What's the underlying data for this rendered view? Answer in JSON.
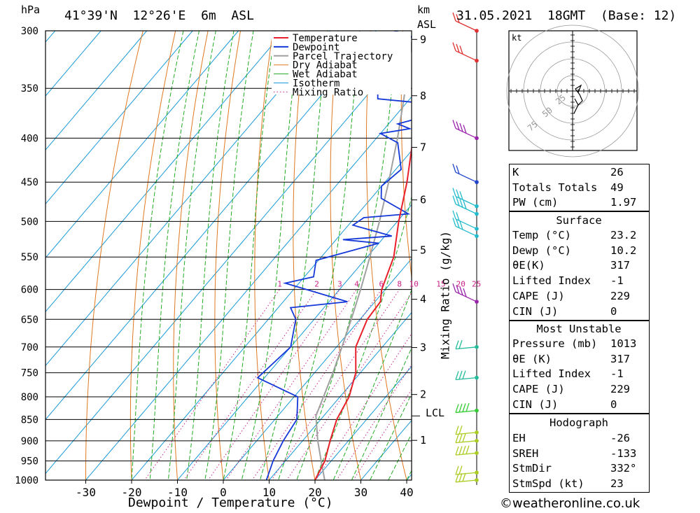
{
  "header": {
    "pressure_unit": "hPa",
    "location": "41°39'N  12°26'E  6m  ASL",
    "height_unit_1": "km",
    "height_unit_2": "ASL",
    "datetime": "31.05.2021  18GMT  (Base: 12)"
  },
  "footer": {
    "copyright": "©weatheronline.co.uk"
  },
  "chart_data": {
    "type": "skew-t",
    "xlabel": "Dewpoint / Temperature (°C)",
    "y2label": "Mixing Ratio (g/kg)",
    "xlim": [
      -40,
      40
    ],
    "ylim_hpa": [
      1000,
      300
    ],
    "x_ticks": [
      -30,
      -20,
      -10,
      0,
      10,
      20,
      30,
      40
    ],
    "pressure_ticks": [
      300,
      350,
      400,
      450,
      500,
      550,
      600,
      650,
      700,
      750,
      800,
      850,
      900,
      950,
      1000
    ],
    "height_ticks": [
      {
        "label": "9",
        "p": 307
      },
      {
        "label": "8",
        "p": 357
      },
      {
        "label": "7",
        "p": 410
      },
      {
        "label": "6",
        "p": 472
      },
      {
        "label": "5",
        "p": 540
      },
      {
        "label": "4",
        "p": 616
      },
      {
        "label": "3",
        "p": 701
      },
      {
        "label": "2",
        "p": 795
      },
      {
        "label": "1",
        "p": 899
      }
    ],
    "lcl": {
      "label": "LCL",
      "p": 842
    },
    "mixing_ratio_labels": [
      "1",
      "2",
      "3",
      "4",
      "6",
      "8",
      "10",
      "15",
      "20",
      "25"
    ],
    "mixing_ratio_values": [
      1,
      2,
      3,
      4,
      6,
      8,
      10,
      15,
      20,
      25
    ],
    "legend": [
      "Temperature",
      "Dewpoint",
      "Parcel Trajectory",
      "Dry Adiabat",
      "Wet Adiabat",
      "Isotherm",
      "Mixing Ratio"
    ],
    "colors": {
      "temperature": "#e8202a",
      "dewpoint": "#1538d8",
      "parcel": "#a0a0a0",
      "dry_adiabat": "#e07820",
      "wet_adiabat": "#22aa22",
      "isotherm": "#1a9ad8",
      "mixing_ratio": "#cc2288"
    },
    "temperature": [
      {
        "p": 1013,
        "t": 23.2
      },
      {
        "p": 1000,
        "t": 20.0
      },
      {
        "p": 950,
        "t": 18.6
      },
      {
        "p": 900,
        "t": 16.0
      },
      {
        "p": 850,
        "t": 13.5
      },
      {
        "p": 800,
        "t": 12.0
      },
      {
        "p": 750,
        "t": 9.0
      },
      {
        "p": 700,
        "t": 4.2
      },
      {
        "p": 650,
        "t": 1.6
      },
      {
        "p": 620,
        "t": 1.2
      },
      {
        "p": 600,
        "t": -0.8
      },
      {
        "p": 550,
        "t": -4.2
      },
      {
        "p": 500,
        "t": -9.7
      },
      {
        "p": 450,
        "t": -15.2
      },
      {
        "p": 400,
        "t": -22.0
      },
      {
        "p": 350,
        "t": -29.6
      },
      {
        "p": 300,
        "t": -38.8
      }
    ],
    "dewpoint": [
      {
        "p": 1013,
        "t": 10.2
      },
      {
        "p": 1000,
        "t": 9.4
      },
      {
        "p": 950,
        "t": 7.3
      },
      {
        "p": 900,
        "t": 5.8
      },
      {
        "p": 850,
        "t": 4.8
      },
      {
        "p": 800,
        "t": 0.8
      },
      {
        "p": 760,
        "t": -11.5
      },
      {
        "p": 700,
        "t": -10.0
      },
      {
        "p": 650,
        "t": -14.0
      },
      {
        "p": 630,
        "t": -17.3
      },
      {
        "p": 620,
        "t": -6.0
      },
      {
        "p": 590,
        "t": -23.0
      },
      {
        "p": 580,
        "t": -18.0
      },
      {
        "p": 555,
        "t": -20.5
      },
      {
        "p": 530,
        "t": -10.0
      },
      {
        "p": 525,
        "t": -18.5
      },
      {
        "p": 520,
        "t": -8.5
      },
      {
        "p": 505,
        "t": -19.0
      },
      {
        "p": 495,
        "t": -18.0
      },
      {
        "p": 490,
        "t": -9.0
      },
      {
        "p": 470,
        "t": -17.8
      },
      {
        "p": 455,
        "t": -20.0
      },
      {
        "p": 435,
        "t": -18.8
      },
      {
        "p": 405,
        "t": -24.5
      },
      {
        "p": 395,
        "t": -30.0
      },
      {
        "p": 390,
        "t": -24.5
      },
      {
        "p": 385,
        "t": -28.0
      },
      {
        "p": 380,
        "t": -25.0
      },
      {
        "p": 375,
        "t": -23.5
      },
      {
        "p": 365,
        "t": -24.2
      },
      {
        "p": 360,
        "t": -37.0
      },
      {
        "p": 340,
        "t": -41.0
      },
      {
        "p": 320,
        "t": -45.0
      },
      {
        "p": 305,
        "t": -41.0
      },
      {
        "p": 295,
        "t": -51.0
      }
    ],
    "parcel": [
      {
        "p": 1013,
        "t": 23.2
      },
      {
        "p": 950,
        "t": 17.8
      },
      {
        "p": 900,
        "t": 13.3
      },
      {
        "p": 842,
        "t": 8.3
      },
      {
        "p": 800,
        "t": 6.4
      },
      {
        "p": 750,
        "t": 4.0
      },
      {
        "p": 700,
        "t": 1.2
      },
      {
        "p": 650,
        "t": -1.9
      },
      {
        "p": 600,
        "t": -5.4
      },
      {
        "p": 550,
        "t": -9.4
      },
      {
        "p": 500,
        "t": -13.9
      },
      {
        "p": 450,
        "t": -19.2
      },
      {
        "p": 400,
        "t": -25.4
      },
      {
        "p": 350,
        "t": -32.9
      },
      {
        "p": 300,
        "t": -41.9
      }
    ],
    "wind_barb_pressures": [
      300,
      325,
      400,
      450,
      480,
      490,
      510,
      520,
      620,
      700,
      760,
      830,
      880,
      900,
      930,
      980,
      1000
    ],
    "hodograph": {
      "unit": "kt",
      "ring_labels": [
        "25",
        "50",
        "75"
      ]
    },
    "indices": {
      "general": [
        {
          "label": "K",
          "value": "26"
        },
        {
          "label": "Totals Totals",
          "value": "49"
        },
        {
          "label": "PW (cm)",
          "value": "1.97"
        }
      ],
      "surface_title": "Surface",
      "surface": [
        {
          "label": "Temp (°C)",
          "value": "23.2"
        },
        {
          "label": "Dewp (°C)",
          "value": "10.2"
        },
        {
          "label": "θE(K)",
          "value": "317"
        },
        {
          "label": "Lifted Index",
          "value": "-1"
        },
        {
          "label": "CAPE (J)",
          "value": "229"
        },
        {
          "label": "CIN (J)",
          "value": "0"
        }
      ],
      "mu_title": "Most Unstable",
      "mu": [
        {
          "label": "Pressure (mb)",
          "value": "1013"
        },
        {
          "label": "θE (K)",
          "value": "317"
        },
        {
          "label": "Lifted Index",
          "value": "-1"
        },
        {
          "label": "CAPE (J)",
          "value": "229"
        },
        {
          "label": "CIN (J)",
          "value": "0"
        }
      ],
      "hodo_title": "Hodograph",
      "hodo": [
        {
          "label": "EH",
          "value": "-26"
        },
        {
          "label": "SREH",
          "value": "-133"
        },
        {
          "label": "StmDir",
          "value": "332°"
        },
        {
          "label": "StmSpd (kt)",
          "value": "23"
        }
      ]
    }
  }
}
